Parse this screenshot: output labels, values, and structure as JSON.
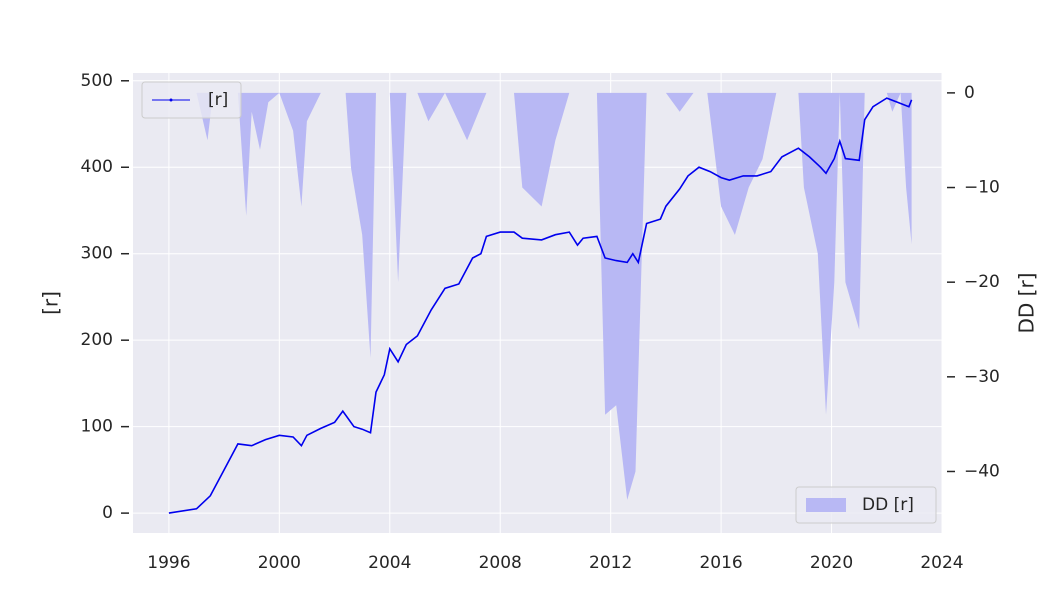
{
  "chart_data": {
    "type": "line",
    "xlabel": null,
    "ylabel": "[r]",
    "y2label": "DD [r]",
    "xlim": [
      1994.7,
      2024.0
    ],
    "xticks": [
      1996,
      2000,
      2004,
      2008,
      2012,
      2016,
      2020,
      2024
    ],
    "ylim": [
      -23,
      509
    ],
    "yticks": [
      0,
      100,
      200,
      300,
      400,
      500
    ],
    "y2lim": [
      -46.5,
      2.1
    ],
    "y2ticks": [
      0,
      {
        "value": -10,
        "label": "−10"
      },
      {
        "value": -20,
        "label": "−20"
      },
      {
        "value": -30,
        "label": "−30"
      },
      {
        "value": -40,
        "label": "−40"
      }
    ],
    "grid": true,
    "series": [
      {
        "name": "DD [r]",
        "color": "#b8b8f4",
        "axis": "y2",
        "fill": true,
        "legend": "lower right",
        "x": [
          1996.0,
          1997.0,
          1997.4,
          1997.6,
          1998.5,
          1998.8,
          1999.0,
          1999.3,
          1999.6,
          2000.0,
          2000.5,
          2000.8,
          2001.0,
          2001.5,
          2002.0,
          2002.4,
          2002.6,
          2003.0,
          2003.3,
          2003.5,
          2004.0,
          2004.3,
          2004.6,
          2005.0,
          2005.4,
          2006.0,
          2006.8,
          2007.5,
          2008.5,
          2008.8,
          2009.5,
          2010.0,
          2010.5,
          2011.0,
          2011.5,
          2011.8,
          2012.2,
          2012.6,
          2012.9,
          2013.1,
          2013.3,
          2014.0,
          2014.5,
          2015.0,
          2015.5,
          2016.0,
          2016.5,
          2017.0,
          2017.5,
          2018.0,
          2018.8,
          2019.0,
          2019.5,
          2019.8,
          2020.1,
          2020.3,
          2020.5,
          2021.0,
          2021.2,
          2022.0,
          2022.2,
          2022.5,
          2022.7,
          2022.9
        ],
        "values": [
          0,
          0,
          -5,
          0,
          0,
          -13,
          -2,
          -6,
          -1,
          0,
          -4,
          -12,
          -3,
          0,
          0,
          0,
          -8,
          -15,
          -28,
          0,
          0,
          -20,
          0,
          0,
          -3,
          0,
          -5,
          0,
          0,
          -10,
          -12,
          -5,
          0,
          0,
          0,
          -34,
          -33,
          -43,
          -40,
          -20,
          0,
          0,
          -2,
          0,
          0,
          -12,
          -15,
          -10,
          -7,
          0,
          0,
          -10,
          -17,
          -34,
          -20,
          0,
          -20,
          -25,
          0,
          0,
          -2,
          0,
          -10,
          -16
        ]
      },
      {
        "name": "[r]",
        "color": "#0000ee",
        "axis": "y",
        "fill": false,
        "legend": "upper left",
        "x": [
          1996.0,
          1997.0,
          1997.5,
          1998.0,
          1998.5,
          1999.0,
          1999.5,
          2000.0,
          2000.5,
          2000.8,
          2001.0,
          2001.5,
          2002.0,
          2002.3,
          2002.7,
          2003.0,
          2003.3,
          2003.5,
          2003.8,
          2004.0,
          2004.3,
          2004.6,
          2005.0,
          2005.5,
          2006.0,
          2006.5,
          2007.0,
          2007.3,
          2007.5,
          2008.0,
          2008.5,
          2008.8,
          2009.5,
          2010.0,
          2010.5,
          2010.8,
          2011.0,
          2011.5,
          2011.8,
          2012.2,
          2012.6,
          2012.8,
          2013.0,
          2013.3,
          2013.8,
          2014.0,
          2014.5,
          2014.8,
          2015.2,
          2015.6,
          2016.0,
          2016.3,
          2016.8,
          2017.3,
          2017.8,
          2018.2,
          2018.8,
          2019.2,
          2019.6,
          2019.8,
          2020.1,
          2020.3,
          2020.5,
          2021.0,
          2021.2,
          2021.5,
          2022.0,
          2022.4,
          2022.8,
          2022.9
        ],
        "values": [
          0,
          5,
          20,
          50,
          80,
          78,
          85,
          90,
          88,
          78,
          90,
          98,
          105,
          118,
          100,
          97,
          93,
          140,
          160,
          190,
          175,
          195,
          205,
          235,
          260,
          265,
          295,
          300,
          320,
          325,
          325,
          318,
          316,
          322,
          325,
          310,
          318,
          320,
          295,
          292,
          290,
          300,
          290,
          335,
          340,
          355,
          375,
          390,
          400,
          395,
          388,
          385,
          390,
          390,
          395,
          412,
          422,
          412,
          400,
          393,
          410,
          430,
          410,
          408,
          455,
          470,
          480,
          475,
          470,
          478
        ]
      }
    ]
  }
}
